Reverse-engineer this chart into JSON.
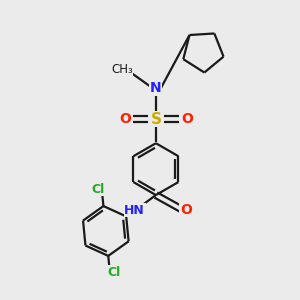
{
  "background_color": "#ebebeb",
  "bond_color": "#1a1a1a",
  "colors": {
    "N": "#2222ff",
    "O": "#ff2200",
    "S": "#ccaa00",
    "Cl": "#22aa22",
    "C": "#1a1a1a",
    "H": "#888888"
  },
  "figsize": [
    3.0,
    3.0
  ],
  "dpi": 100
}
